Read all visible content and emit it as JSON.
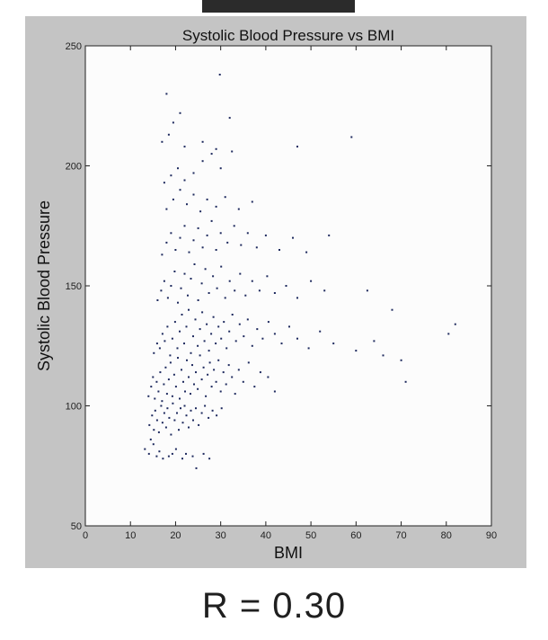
{
  "caption": {
    "r_text": "R = 0.30"
  },
  "colors": {
    "frame": "#c4c4c4",
    "plot_bg": "#fcfcfc",
    "marker": "#1e2a5e"
  },
  "chart_data": {
    "type": "scatter",
    "title": "Systolic Blood Pressure vs BMI",
    "xlabel": "BMI",
    "ylabel": "Systolic Blood Pressure",
    "xlim": [
      0,
      90
    ],
    "ylim": [
      50,
      250
    ],
    "xticks": [
      0,
      10,
      20,
      30,
      40,
      50,
      60,
      70,
      80,
      90
    ],
    "yticks": [
      50,
      100,
      150,
      200,
      250
    ],
    "grid": false,
    "correlation": 0.3,
    "series": [
      {
        "points": [
          [
            13.2,
            82
          ],
          [
            14.1,
            80
          ],
          [
            14.5,
            86
          ],
          [
            15.1,
            84
          ],
          [
            15.8,
            79
          ],
          [
            16.4,
            81
          ],
          [
            17.2,
            78
          ],
          [
            18.5,
            79
          ],
          [
            19.3,
            80
          ],
          [
            20.1,
            82
          ],
          [
            21.5,
            78
          ],
          [
            22.3,
            80
          ],
          [
            23.8,
            79
          ],
          [
            24.6,
            74
          ],
          [
            26.2,
            80
          ],
          [
            27.5,
            78
          ],
          [
            14.2,
            92
          ],
          [
            14.8,
            96
          ],
          [
            15.2,
            90
          ],
          [
            15.5,
            98
          ],
          [
            15.9,
            94
          ],
          [
            16.3,
            89
          ],
          [
            16.8,
            100
          ],
          [
            17.1,
            93
          ],
          [
            17.5,
            97
          ],
          [
            17.9,
            91
          ],
          [
            18.2,
            99
          ],
          [
            18.6,
            95
          ],
          [
            19.0,
            88
          ],
          [
            19.4,
            101
          ],
          [
            19.8,
            94
          ],
          [
            20.3,
            97
          ],
          [
            20.7,
            90
          ],
          [
            21.1,
            99
          ],
          [
            21.6,
            93
          ],
          [
            22.0,
            100
          ],
          [
            22.4,
            96
          ],
          [
            22.9,
            91
          ],
          [
            23.4,
            98
          ],
          [
            23.9,
            94
          ],
          [
            24.5,
            99
          ],
          [
            25.1,
            92
          ],
          [
            25.8,
            97
          ],
          [
            26.5,
            100
          ],
          [
            27.3,
            95
          ],
          [
            28.2,
            98
          ],
          [
            29.1,
            96
          ],
          [
            30.2,
            99
          ],
          [
            14.0,
            104
          ],
          [
            14.6,
            108
          ],
          [
            15.0,
            112
          ],
          [
            15.4,
            103
          ],
          [
            15.8,
            110
          ],
          [
            16.2,
            106
          ],
          [
            16.6,
            114
          ],
          [
            17.0,
            102
          ],
          [
            17.4,
            109
          ],
          [
            17.8,
            116
          ],
          [
            18.1,
            105
          ],
          [
            18.5,
            111
          ],
          [
            18.9,
            118
          ],
          [
            19.3,
            104
          ],
          [
            19.7,
            113
          ],
          [
            20.1,
            108
          ],
          [
            20.5,
            120
          ],
          [
            20.9,
            103
          ],
          [
            21.3,
            115
          ],
          [
            21.7,
            110
          ],
          [
            22.1,
            106
          ],
          [
            22.5,
            119
          ],
          [
            22.9,
            112
          ],
          [
            23.3,
            105
          ],
          [
            23.7,
            117
          ],
          [
            24.1,
            109
          ],
          [
            24.5,
            114
          ],
          [
            24.9,
            107
          ],
          [
            25.4,
            121
          ],
          [
            25.8,
            111
          ],
          [
            26.2,
            116
          ],
          [
            26.7,
            104
          ],
          [
            27.1,
            113
          ],
          [
            27.6,
            118
          ],
          [
            28.0,
            108
          ],
          [
            28.5,
            115
          ],
          [
            29.0,
            110
          ],
          [
            29.5,
            119
          ],
          [
            30.0,
            106
          ],
          [
            30.6,
            114
          ],
          [
            31.2,
            109
          ],
          [
            31.8,
            117
          ],
          [
            32.5,
            112
          ],
          [
            33.2,
            105
          ],
          [
            34.0,
            115
          ],
          [
            35.0,
            110
          ],
          [
            36.2,
            118
          ],
          [
            37.5,
            108
          ],
          [
            38.8,
            114
          ],
          [
            40.5,
            112
          ],
          [
            42.0,
            106
          ],
          [
            15.2,
            122
          ],
          [
            15.9,
            126
          ],
          [
            16.5,
            124
          ],
          [
            17.1,
            130
          ],
          [
            17.6,
            127
          ],
          [
            18.2,
            133
          ],
          [
            18.8,
            121
          ],
          [
            19.3,
            128
          ],
          [
            19.9,
            135
          ],
          [
            20.4,
            124
          ],
          [
            20.9,
            131
          ],
          [
            21.4,
            138
          ],
          [
            21.9,
            126
          ],
          [
            22.4,
            133
          ],
          [
            22.9,
            140
          ],
          [
            23.4,
            122
          ],
          [
            23.9,
            129
          ],
          [
            24.4,
            136
          ],
          [
            24.9,
            125
          ],
          [
            25.4,
            132
          ],
          [
            25.9,
            139
          ],
          [
            26.4,
            127
          ],
          [
            26.9,
            134
          ],
          [
            27.4,
            123
          ],
          [
            27.9,
            130
          ],
          [
            28.4,
            137
          ],
          [
            28.9,
            126
          ],
          [
            29.5,
            133
          ],
          [
            30.1,
            128
          ],
          [
            30.7,
            135
          ],
          [
            31.3,
            124
          ],
          [
            31.9,
            131
          ],
          [
            32.6,
            138
          ],
          [
            33.4,
            127
          ],
          [
            34.2,
            134
          ],
          [
            35.1,
            129
          ],
          [
            36.0,
            136
          ],
          [
            37.0,
            125
          ],
          [
            38.1,
            132
          ],
          [
            39.3,
            128
          ],
          [
            40.6,
            135
          ],
          [
            42.0,
            130
          ],
          [
            43.5,
            126
          ],
          [
            45.2,
            133
          ],
          [
            47.0,
            128
          ],
          [
            49.5,
            124
          ],
          [
            52.0,
            131
          ],
          [
            55.0,
            126
          ],
          [
            16.0,
            144
          ],
          [
            16.8,
            148
          ],
          [
            17.5,
            152
          ],
          [
            18.3,
            145
          ],
          [
            19.0,
            150
          ],
          [
            19.8,
            156
          ],
          [
            20.5,
            143
          ],
          [
            21.2,
            149
          ],
          [
            22.0,
            155
          ],
          [
            22.7,
            146
          ],
          [
            23.4,
            153
          ],
          [
            24.2,
            159
          ],
          [
            25.0,
            144
          ],
          [
            25.8,
            151
          ],
          [
            26.6,
            157
          ],
          [
            27.4,
            147
          ],
          [
            28.3,
            154
          ],
          [
            29.2,
            149
          ],
          [
            30.1,
            158
          ],
          [
            31.0,
            145
          ],
          [
            32.0,
            152
          ],
          [
            33.1,
            148
          ],
          [
            34.3,
            155
          ],
          [
            35.5,
            146
          ],
          [
            37.0,
            152
          ],
          [
            38.6,
            148
          ],
          [
            40.3,
            154
          ],
          [
            42.0,
            147
          ],
          [
            44.5,
            150
          ],
          [
            47.0,
            145
          ],
          [
            50.0,
            152
          ],
          [
            53.0,
            148
          ],
          [
            17.0,
            163
          ],
          [
            18.0,
            168
          ],
          [
            19.0,
            172
          ],
          [
            20.0,
            165
          ],
          [
            21.0,
            170
          ],
          [
            22.0,
            175
          ],
          [
            23.0,
            164
          ],
          [
            24.0,
            169
          ],
          [
            25.0,
            174
          ],
          [
            26.0,
            166
          ],
          [
            27.0,
            171
          ],
          [
            28.0,
            177
          ],
          [
            29.0,
            165
          ],
          [
            30.0,
            172
          ],
          [
            31.5,
            168
          ],
          [
            33.0,
            175
          ],
          [
            34.5,
            167
          ],
          [
            36.0,
            172
          ],
          [
            38.0,
            166
          ],
          [
            40.0,
            171
          ],
          [
            43.0,
            165
          ],
          [
            46.0,
            170
          ],
          [
            49.0,
            164
          ],
          [
            54.0,
            171
          ],
          [
            18.0,
            182
          ],
          [
            19.5,
            186
          ],
          [
            21.0,
            190
          ],
          [
            22.5,
            184
          ],
          [
            24.0,
            188
          ],
          [
            25.5,
            181
          ],
          [
            27.0,
            186
          ],
          [
            29.0,
            183
          ],
          [
            31.0,
            187
          ],
          [
            34.0,
            182
          ],
          [
            37.0,
            185
          ],
          [
            17.5,
            193
          ],
          [
            19.0,
            196
          ],
          [
            20.5,
            199
          ],
          [
            22.0,
            194
          ],
          [
            24.0,
            197
          ],
          [
            26.0,
            202
          ],
          [
            28.0,
            205
          ],
          [
            30.0,
            199
          ],
          [
            32.5,
            206
          ],
          [
            17.0,
            210
          ],
          [
            18.5,
            213
          ],
          [
            22.0,
            208
          ],
          [
            26.0,
            210
          ],
          [
            29.0,
            207
          ],
          [
            19.5,
            218
          ],
          [
            21.0,
            222
          ],
          [
            32.0,
            220
          ],
          [
            18.0,
            230
          ],
          [
            29.8,
            238
          ],
          [
            47.0,
            208
          ],
          [
            59.0,
            212
          ],
          [
            60.0,
            123
          ],
          [
            62.5,
            148
          ],
          [
            64.0,
            127
          ],
          [
            66.0,
            121
          ],
          [
            68.0,
            140
          ],
          [
            70.0,
            119
          ],
          [
            71.0,
            110
          ],
          [
            80.5,
            130
          ],
          [
            82.0,
            134
          ]
        ]
      }
    ]
  }
}
